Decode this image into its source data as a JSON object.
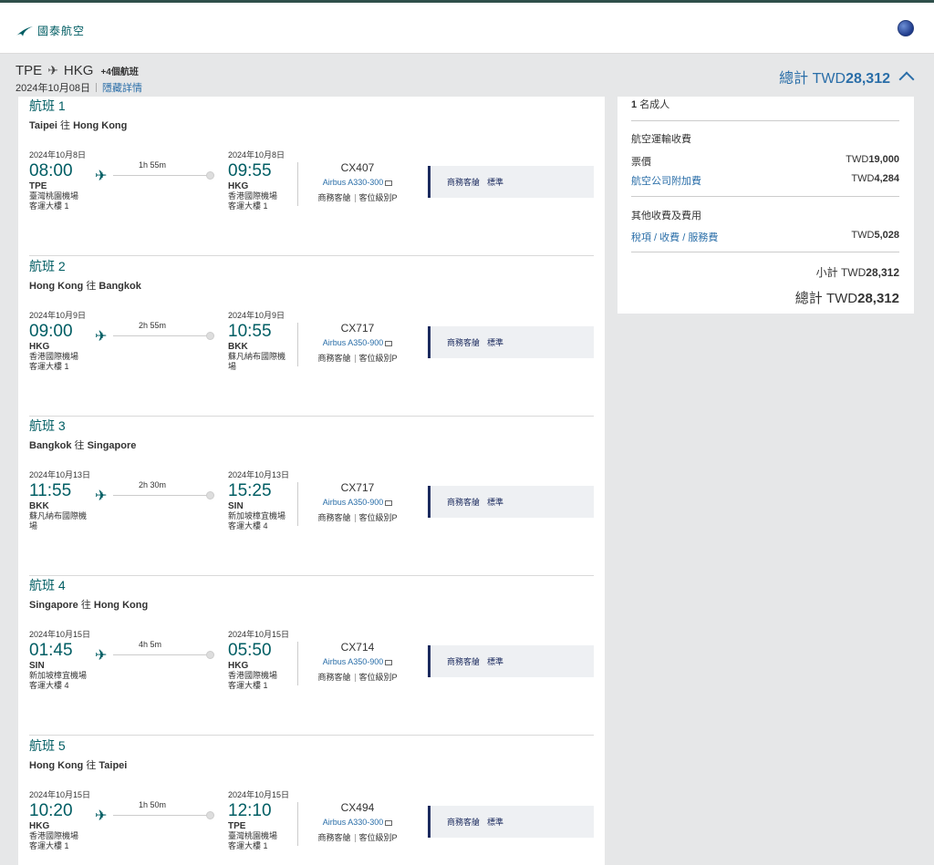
{
  "header": {
    "brand": "國泰航空"
  },
  "trip": {
    "from": "TPE",
    "to": "HKG",
    "extra_flights": "+4個航班",
    "date": "2024年10月08日",
    "toggle_details": "隱藏詳情",
    "total_label": "總計 TWD",
    "total_amount": "28,312"
  },
  "flights": [
    {
      "number_label": "航班 1",
      "from_city": "Taipei",
      "to_word": "往",
      "to_city": "Hong Kong",
      "dep_date": "2024年10月8日",
      "dep_time": "08:00",
      "dep_code": "TPE",
      "dep_airport_1": "臺灣桃園機場",
      "dep_airport_2": "客運大樓 1",
      "duration": "1h 55m",
      "arr_date": "2024年10月8日",
      "arr_time": "09:55",
      "arr_code": "HKG",
      "arr_airport_1": "香港國際機場",
      "arr_airport_2": "客運大樓 1",
      "flight_code": "CX407",
      "aircraft": "Airbus A330-300",
      "cabin_short": "商務客艙",
      "booking_class": "客位級別P",
      "cabin": "商務客艙",
      "fare": "標準"
    },
    {
      "number_label": "航班 2",
      "from_city": "Hong Kong",
      "to_word": "往",
      "to_city": "Bangkok",
      "dep_date": "2024年10月9日",
      "dep_time": "09:00",
      "dep_code": "HKG",
      "dep_airport_1": "香港國際機場",
      "dep_airport_2": "客運大樓 1",
      "duration": "2h 55m",
      "arr_date": "2024年10月9日",
      "arr_time": "10:55",
      "arr_code": "BKK",
      "arr_airport_1": "蘇凡納布國際機",
      "arr_airport_2": "場",
      "flight_code": "CX717",
      "aircraft": "Airbus A350-900",
      "cabin_short": "商務客艙",
      "booking_class": "客位級別P",
      "cabin": "商務客艙",
      "fare": "標準"
    },
    {
      "number_label": "航班 3",
      "from_city": "Bangkok",
      "to_word": "往",
      "to_city": "Singapore",
      "dep_date": "2024年10月13日",
      "dep_time": "11:55",
      "dep_code": "BKK",
      "dep_airport_1": "蘇凡納布國際機",
      "dep_airport_2": "場",
      "duration": "2h 30m",
      "arr_date": "2024年10月13日",
      "arr_time": "15:25",
      "arr_code": "SIN",
      "arr_airport_1": "新加坡樟宜機場",
      "arr_airport_2": "客運大樓 4",
      "flight_code": "CX717",
      "aircraft": "Airbus A350-900",
      "cabin_short": "商務客艙",
      "booking_class": "客位級別P",
      "cabin": "商務客艙",
      "fare": "標準"
    },
    {
      "number_label": "航班 4",
      "from_city": "Singapore",
      "to_word": "往",
      "to_city": "Hong Kong",
      "dep_date": "2024年10月15日",
      "dep_time": "01:45",
      "dep_code": "SIN",
      "dep_airport_1": "新加坡樟宜機場",
      "dep_airport_2": "客運大樓 4",
      "duration": "4h 5m",
      "arr_date": "2024年10月15日",
      "arr_time": "05:50",
      "arr_code": "HKG",
      "arr_airport_1": "香港國際機場",
      "arr_airport_2": "客運大樓 1",
      "flight_code": "CX714",
      "aircraft": "Airbus A350-900",
      "cabin_short": "商務客艙",
      "booking_class": "客位級別P",
      "cabin": "商務客艙",
      "fare": "標準"
    },
    {
      "number_label": "航班 5",
      "from_city": "Hong Kong",
      "to_word": "往",
      "to_city": "Taipei",
      "dep_date": "2024年10月15日",
      "dep_time": "10:20",
      "dep_code": "HKG",
      "dep_airport_1": "香港國際機場",
      "dep_airport_2": "客運大樓 1",
      "duration": "1h 50m",
      "arr_date": "2024年10月15日",
      "arr_time": "12:10",
      "arr_code": "TPE",
      "arr_airport_1": "臺灣桃園機場",
      "arr_airport_2": "客運大樓 1",
      "flight_code": "CX494",
      "aircraft": "Airbus A330-300",
      "cabin_short": "商務客艙",
      "booking_class": "客位級別P",
      "cabin": "商務客艙",
      "fare": "標準"
    }
  ],
  "price": {
    "passengers_count": "1",
    "passengers_label": "名成人",
    "air_transport_heading": "航空運輸收費",
    "fare_label": "票價",
    "fare_currency": "TWD",
    "fare_value": "19,000",
    "surcharge_label": "航空公司附加費",
    "surcharge_currency": "TWD",
    "surcharge_value": "4,284",
    "other_heading": "其他收費及費用",
    "taxes_label": "稅項 / 收費 / 服務費",
    "taxes_currency": "TWD",
    "taxes_value": "5,028",
    "subtotal_label": "小計 TWD",
    "subtotal_value": "28,312",
    "grand_label": "總計 TWD",
    "grand_value": "28,312"
  },
  "colors": {
    "teal": "#005d63",
    "link": "#2a6ea8",
    "navy": "#1b2a5e"
  }
}
